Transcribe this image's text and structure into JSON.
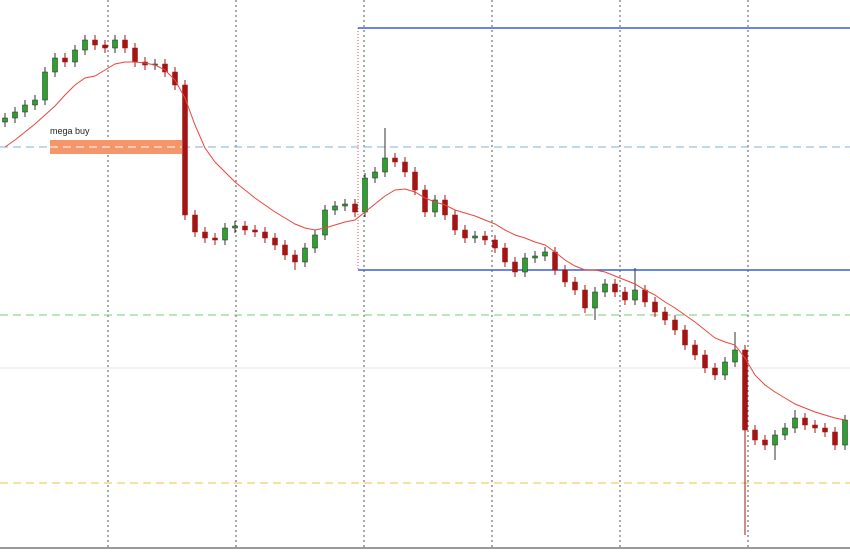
{
  "chart_data": {
    "type": "candlestick",
    "annotations": [
      "mega buy"
    ],
    "ylim": [
      0,
      550
    ],
    "up_color": "#2ea02e",
    "down_color": "#a31515",
    "open": [
      428,
      432,
      438,
      445,
      450,
      478,
      492,
      488,
      500,
      510,
      505,
      502,
      510,
      502,
      488,
      485,
      486,
      478,
      465,
      335,
      318,
      312,
      310,
      322,
      324,
      320,
      318,
      312,
      305,
      295,
      288,
      302,
      315,
      340,
      344,
      346,
      338,
      372,
      378,
      392,
      388,
      378,
      360,
      338,
      350,
      335,
      320,
      312,
      314,
      310,
      302,
      288,
      278,
      292,
      294,
      298,
      280,
      268,
      260,
      242,
      258,
      266,
      258,
      250,
      260,
      248,
      238,
      230,
      220,
      205,
      195,
      182,
      175,
      188,
      200,
      120,
      110,
      105,
      115,
      122,
      132,
      125,
      122,
      118,
      105
    ],
    "high": [
      437,
      443,
      450,
      455,
      483,
      497,
      497,
      505,
      515,
      515,
      510,
      515,
      515,
      507,
      493,
      491,
      491,
      483,
      470,
      340,
      323,
      317,
      327,
      329,
      329,
      325,
      323,
      317,
      310,
      300,
      307,
      320,
      345,
      349,
      351,
      351,
      377,
      383,
      422,
      397,
      393,
      383,
      365,
      355,
      355,
      340,
      325,
      319,
      319,
      315,
      307,
      293,
      297,
      299,
      303,
      303,
      285,
      273,
      265,
      263,
      271,
      271,
      263,
      282,
      265,
      253,
      243,
      235,
      225,
      210,
      200,
      187,
      193,
      218,
      205,
      125,
      115,
      120,
      127,
      140,
      137,
      130,
      127,
      123,
      135
    ],
    "low": [
      423,
      427,
      433,
      440,
      445,
      473,
      483,
      483,
      495,
      500,
      497,
      497,
      497,
      483,
      480,
      480,
      473,
      460,
      330,
      313,
      307,
      305,
      305,
      317,
      315,
      313,
      307,
      300,
      290,
      280,
      283,
      297,
      310,
      335,
      339,
      333,
      333,
      367,
      373,
      383,
      373,
      355,
      333,
      333,
      330,
      315,
      307,
      307,
      305,
      297,
      283,
      273,
      273,
      287,
      289,
      275,
      263,
      255,
      237,
      230,
      253,
      253,
      245,
      245,
      243,
      233,
      225,
      215,
      200,
      190,
      177,
      170,
      170,
      183,
      15,
      105,
      100,
      90,
      110,
      117,
      120,
      117,
      113,
      100,
      100
    ],
    "close": [
      432,
      438,
      445,
      450,
      478,
      492,
      488,
      500,
      510,
      505,
      502,
      510,
      502,
      488,
      485,
      486,
      478,
      465,
      335,
      318,
      312,
      310,
      322,
      324,
      320,
      318,
      312,
      305,
      295,
      288,
      302,
      315,
      340,
      344,
      346,
      338,
      372,
      378,
      392,
      388,
      378,
      360,
      338,
      350,
      335,
      320,
      312,
      314,
      310,
      302,
      288,
      278,
      292,
      294,
      298,
      280,
      268,
      260,
      242,
      258,
      266,
      258,
      250,
      260,
      248,
      238,
      230,
      220,
      205,
      195,
      182,
      175,
      188,
      200,
      120,
      110,
      105,
      115,
      122,
      132,
      125,
      122,
      118,
      105,
      130
    ],
    "ma": {
      "color": "#e8463c",
      "values": [
        403,
        410,
        418,
        426,
        435,
        444,
        455,
        465,
        472,
        474,
        480,
        486,
        488,
        488,
        487,
        485,
        480,
        470,
        452,
        425,
        402,
        388,
        378,
        368,
        360,
        352,
        345,
        338,
        332,
        326,
        322,
        320,
        322,
        325,
        328,
        330,
        338,
        346,
        354,
        360,
        361,
        358,
        352,
        348,
        345,
        340,
        337,
        334,
        330,
        326,
        320,
        315,
        312,
        308,
        305,
        298,
        290,
        284,
        280,
        280,
        278,
        274,
        270,
        266,
        260,
        255,
        248,
        242,
        235,
        228,
        220,
        212,
        208,
        205,
        192,
        175,
        165,
        158,
        152,
        146,
        142,
        138,
        135,
        132,
        130
      ]
    }
  }
}
